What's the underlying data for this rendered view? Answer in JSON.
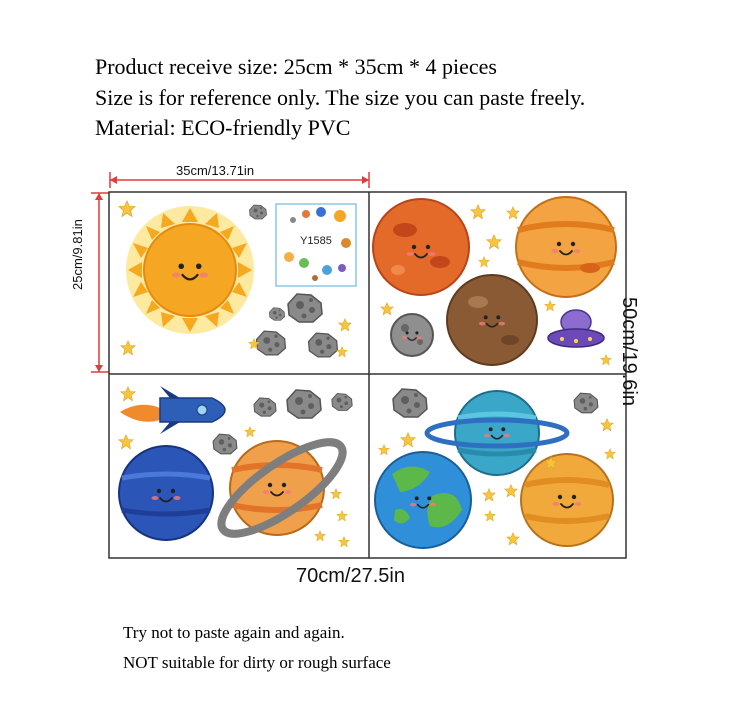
{
  "header": {
    "line1": "Product receive size: 25cm * 35cm * 4 pieces",
    "line2": "Size is for reference only. The size you can paste freely.",
    "line3": "Material: ECO-friendly PVC"
  },
  "dimensions": {
    "top": "35cm/13.71in",
    "left": "25cm/9.81in",
    "right": "50cm/19.6in",
    "bottom": "70cm/27.5in"
  },
  "product_code": "Y1585",
  "footer": {
    "line1": "Try not to paste again and again.",
    "line2": "NOT suitable for dirty or rough surface"
  },
  "colors": {
    "dimension_line": "#e23b3b",
    "sheet_border": "#333333",
    "sun": "#f5a623",
    "star": "#f5c542"
  },
  "icons": [
    "sun-icon",
    "mars-icon",
    "jupiter-icon",
    "mercury-icon",
    "ufo-icon",
    "rocket-icon",
    "neptune-icon",
    "saturn-icon",
    "uranus-icon",
    "earth-icon",
    "venus-icon",
    "asteroid-icon",
    "star-icon"
  ]
}
